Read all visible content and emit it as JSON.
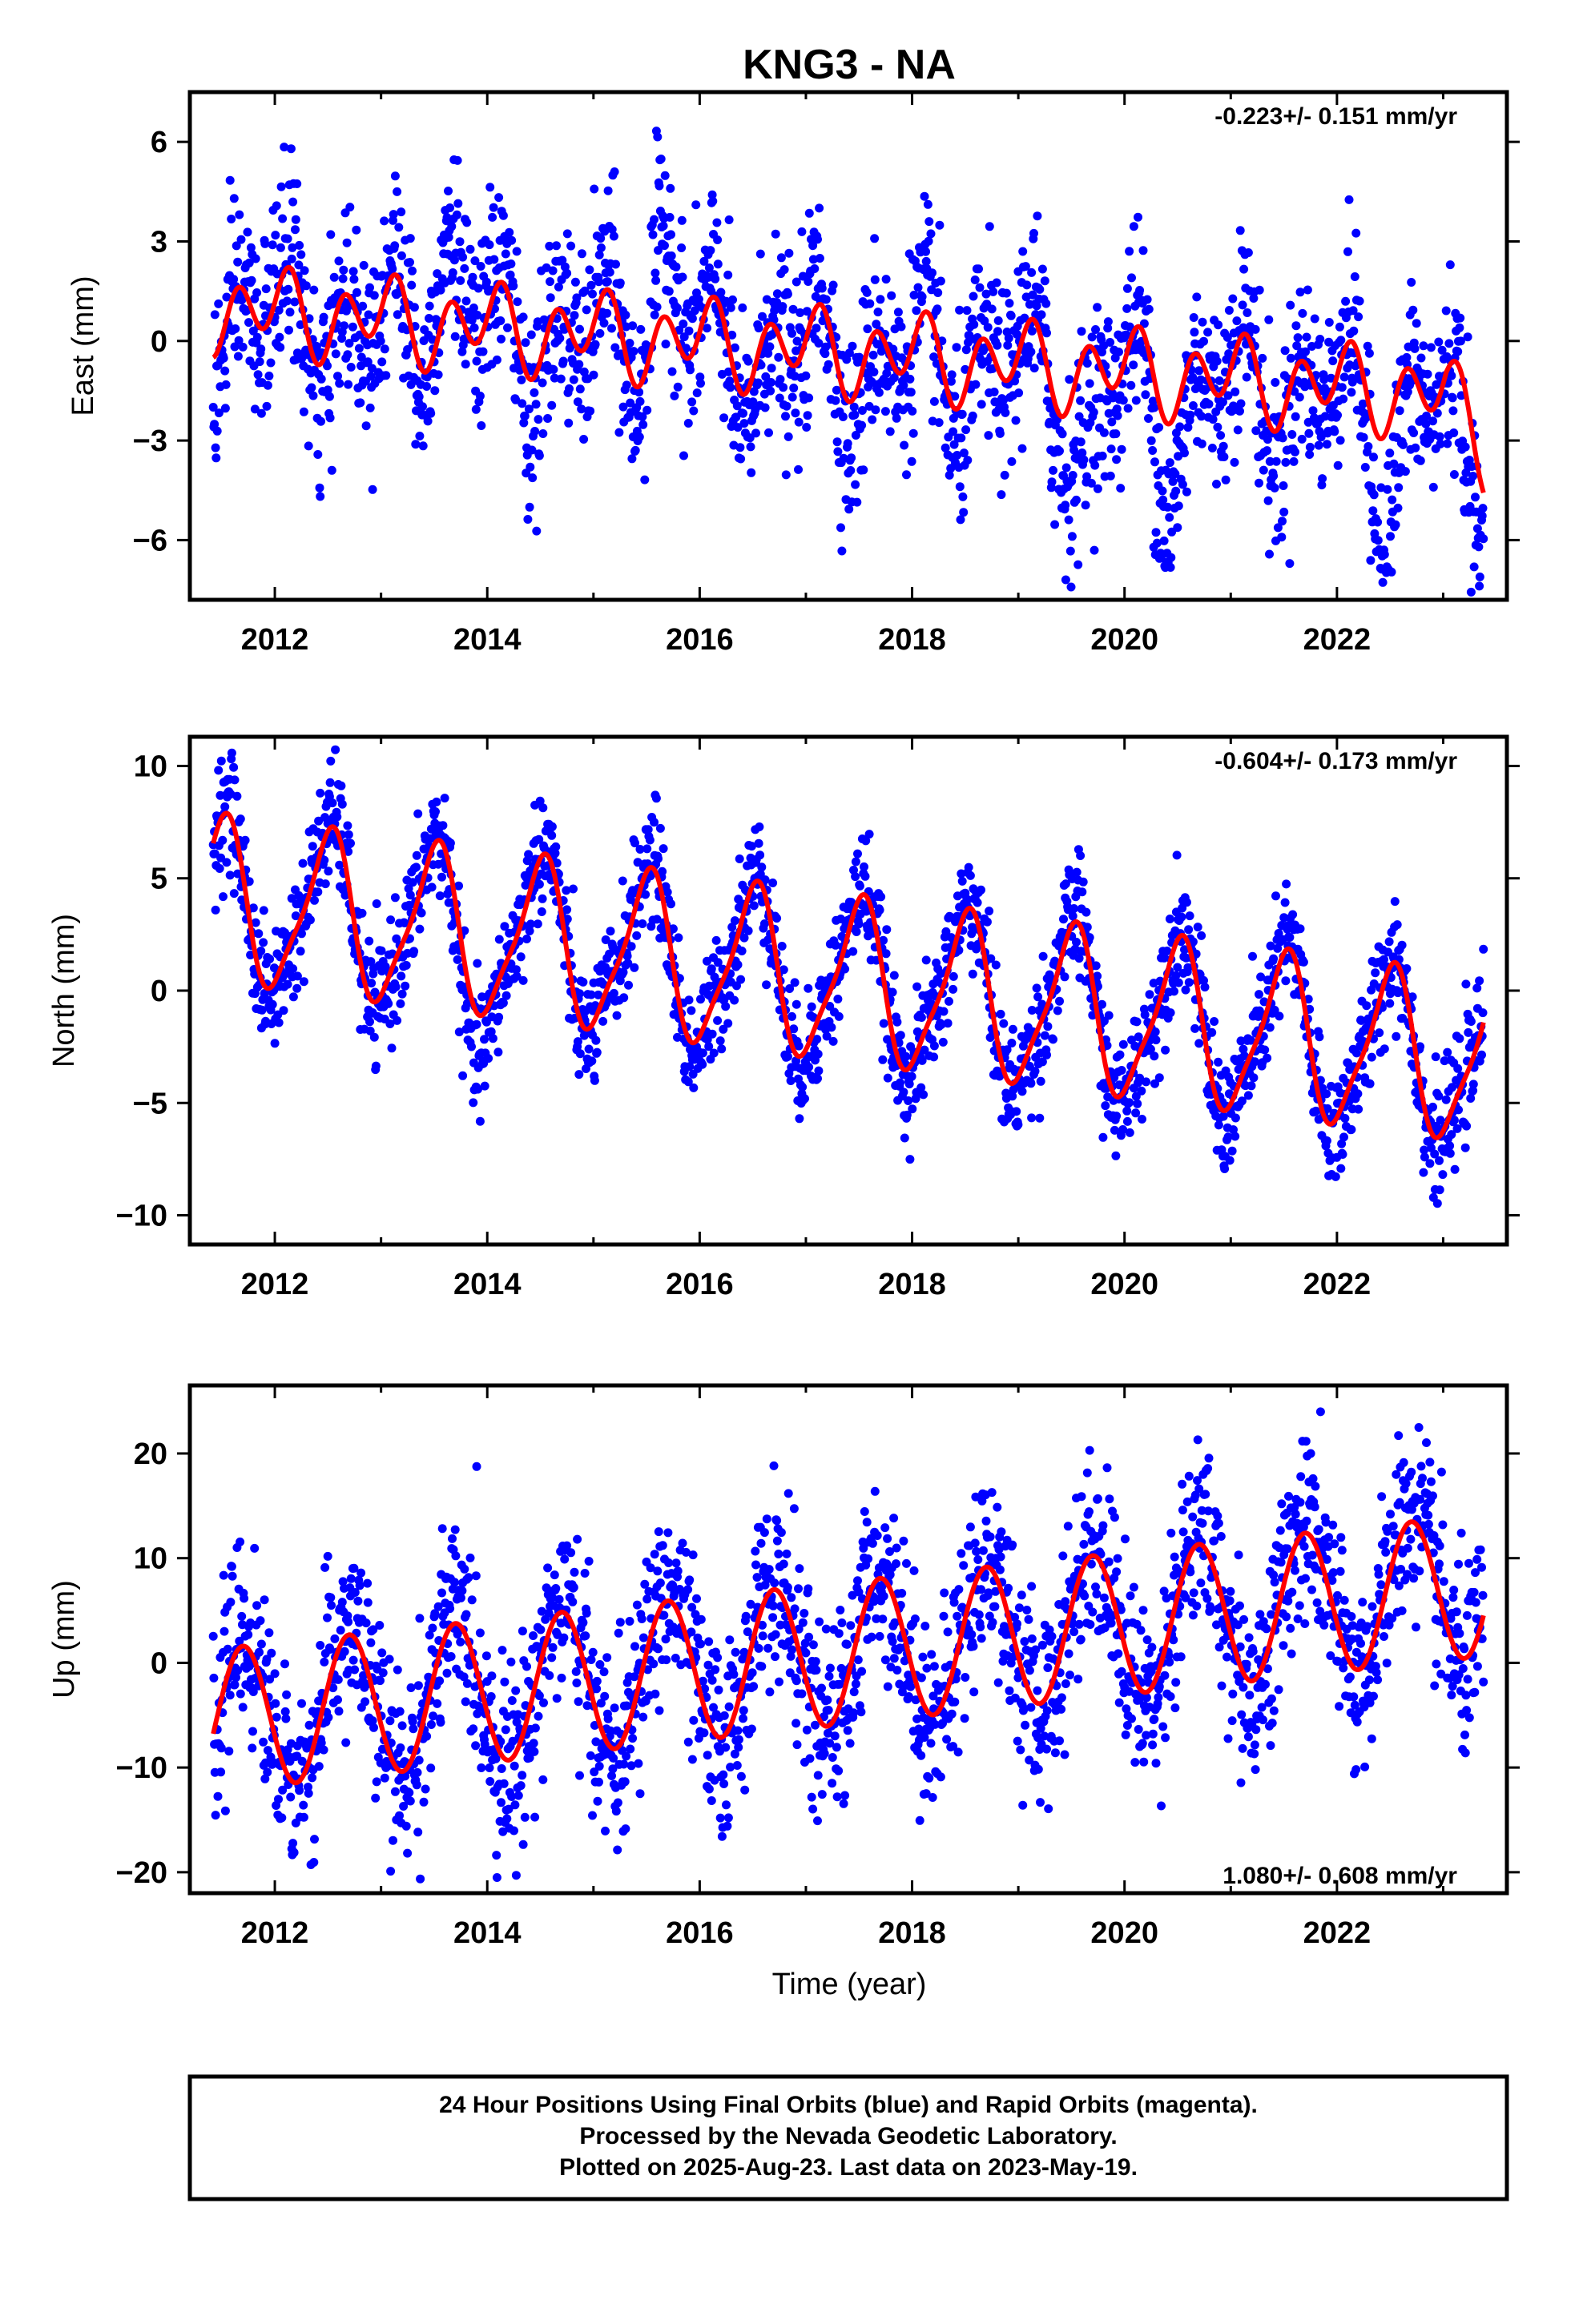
{
  "title": "KNG3 - NA",
  "chart_data": [
    {
      "type": "scatter",
      "ylabel": "East (mm)",
      "xlabel": "",
      "xlim": [
        2011.2,
        2023.6
      ],
      "ylim": [
        -7.8,
        7.5
      ],
      "xticks": [
        2012,
        2014,
        2016,
        2018,
        2020,
        2022
      ],
      "xtick_labels": [
        "2012",
        "2014",
        "2016",
        "2018",
        "2020",
        "2022"
      ],
      "yticks": [
        -6,
        -3,
        0,
        3,
        6
      ],
      "ytick_labels": [
        "−6",
        "−3",
        "0",
        "3",
        "6"
      ],
      "rate": "-0.223+/- 0.151 mm/yr",
      "rate_position": "top-right",
      "data_start": 2011.42,
      "data_end": 2023.38,
      "series": [
        {
          "role": "daily-positions",
          "color": "#0000ff",
          "trend": {
            "start": 0.8,
            "rate": -0.223
          },
          "annual_amplitude": 1.1,
          "annual_phase": 0.0,
          "semiannual_amplitude": 1.4,
          "semiannual_phase": 0.15,
          "scatter": 1.4,
          "bumps": [
            {
              "center": 2013.6,
              "height": 2.5
            },
            {
              "center": 2015.65,
              "height": 2.8
            },
            {
              "center": 2019.6,
              "height": -2.0
            },
            {
              "center": 2020.4,
              "height": -2.0
            },
            {
              "center": 2022.45,
              "height": -2.5
            },
            {
              "center": 2023.3,
              "height": -3.0
            }
          ]
        },
        {
          "role": "model-fit",
          "color": "#ff0000",
          "trend": {
            "start": 1.0,
            "rate": -0.223
          },
          "annual_amplitude": 0.6,
          "annual_phase": 0.0,
          "semiannual_amplitude": 1.0,
          "semiannual_phase": 0.15,
          "end_drift": -1.5
        }
      ]
    },
    {
      "type": "scatter",
      "ylabel": "North (mm)",
      "xlabel": "",
      "xlim": [
        2011.2,
        2023.6
      ],
      "ylim": [
        -11.3,
        11.3
      ],
      "xticks": [
        2012,
        2014,
        2016,
        2018,
        2020,
        2022
      ],
      "xtick_labels": [
        "2012",
        "2014",
        "2016",
        "2018",
        "2020",
        "2022"
      ],
      "yticks": [
        -10,
        -5,
        0,
        5,
        10
      ],
      "ytick_labels": [
        "−10",
        "−5",
        "0",
        "5",
        "10"
      ],
      "rate": "-0.604+/- 0.173 mm/yr",
      "rate_position": "top-right",
      "data_start": 2011.42,
      "data_end": 2023.38,
      "series": [
        {
          "role": "daily-positions",
          "color": "#0000ff",
          "trend": {
            "start": 4.0,
            "rate": -0.604
          },
          "annual_amplitude": 3.8,
          "annual_phase": 0.5,
          "semiannual_amplitude": 0.8,
          "semiannual_phase": 0.1,
          "scatter": 1.3,
          "bumps": [
            {
              "center": 2013.85,
              "height": -2.0
            }
          ]
        },
        {
          "role": "model-fit",
          "color": "#ff0000",
          "trend": {
            "start": 4.0,
            "rate": -0.604
          },
          "annual_amplitude": 3.5,
          "annual_phase": 0.5,
          "semiannual_amplitude": 0.8,
          "semiannual_phase": 0.1
        }
      ]
    },
    {
      "type": "scatter",
      "ylabel": "Up (mm)",
      "xlabel": "Time (year)",
      "xlim": [
        2011.2,
        2023.6
      ],
      "ylim": [
        -22,
        26.5
      ],
      "xticks": [
        2012,
        2014,
        2016,
        2018,
        2020,
        2022
      ],
      "xtick_labels": [
        "2012",
        "2014",
        "2016",
        "2018",
        "2020",
        "2022"
      ],
      "yticks": [
        -20,
        -10,
        0,
        10,
        20
      ],
      "ytick_labels": [
        "−20",
        "−10",
        "0",
        "10",
        "20"
      ],
      "rate": "1.080+/- 0.608 mm/yr",
      "rate_position": "bottom-right",
      "data_start": 2011.42,
      "data_end": 2023.38,
      "series": [
        {
          "role": "daily-positions",
          "color": "#0000ff",
          "trend": {
            "start": -5.5,
            "rate": 1.08
          },
          "annual_amplitude": 7.5,
          "annual_phase": 0.7,
          "semiannual_amplitude": 0.0,
          "semiannual_phase": 0.0,
          "scatter": 4.5,
          "bumps": []
        },
        {
          "role": "model-fit",
          "color": "#ff0000",
          "trend": {
            "start": -5.5,
            "rate": 1.08
          },
          "annual_amplitude": 6.8,
          "annual_phase": 0.7,
          "semiannual_amplitude": 0.0,
          "semiannual_phase": 0.0
        }
      ]
    }
  ],
  "footer": {
    "line1": "24 Hour Positions Using Final Orbits (blue) and Rapid Orbits (magenta).",
    "line2": "Processed by the Nevada Geodetic Laboratory.",
    "line3": "Plotted on 2025-Aug-23. Last data on 2023-May-19."
  }
}
